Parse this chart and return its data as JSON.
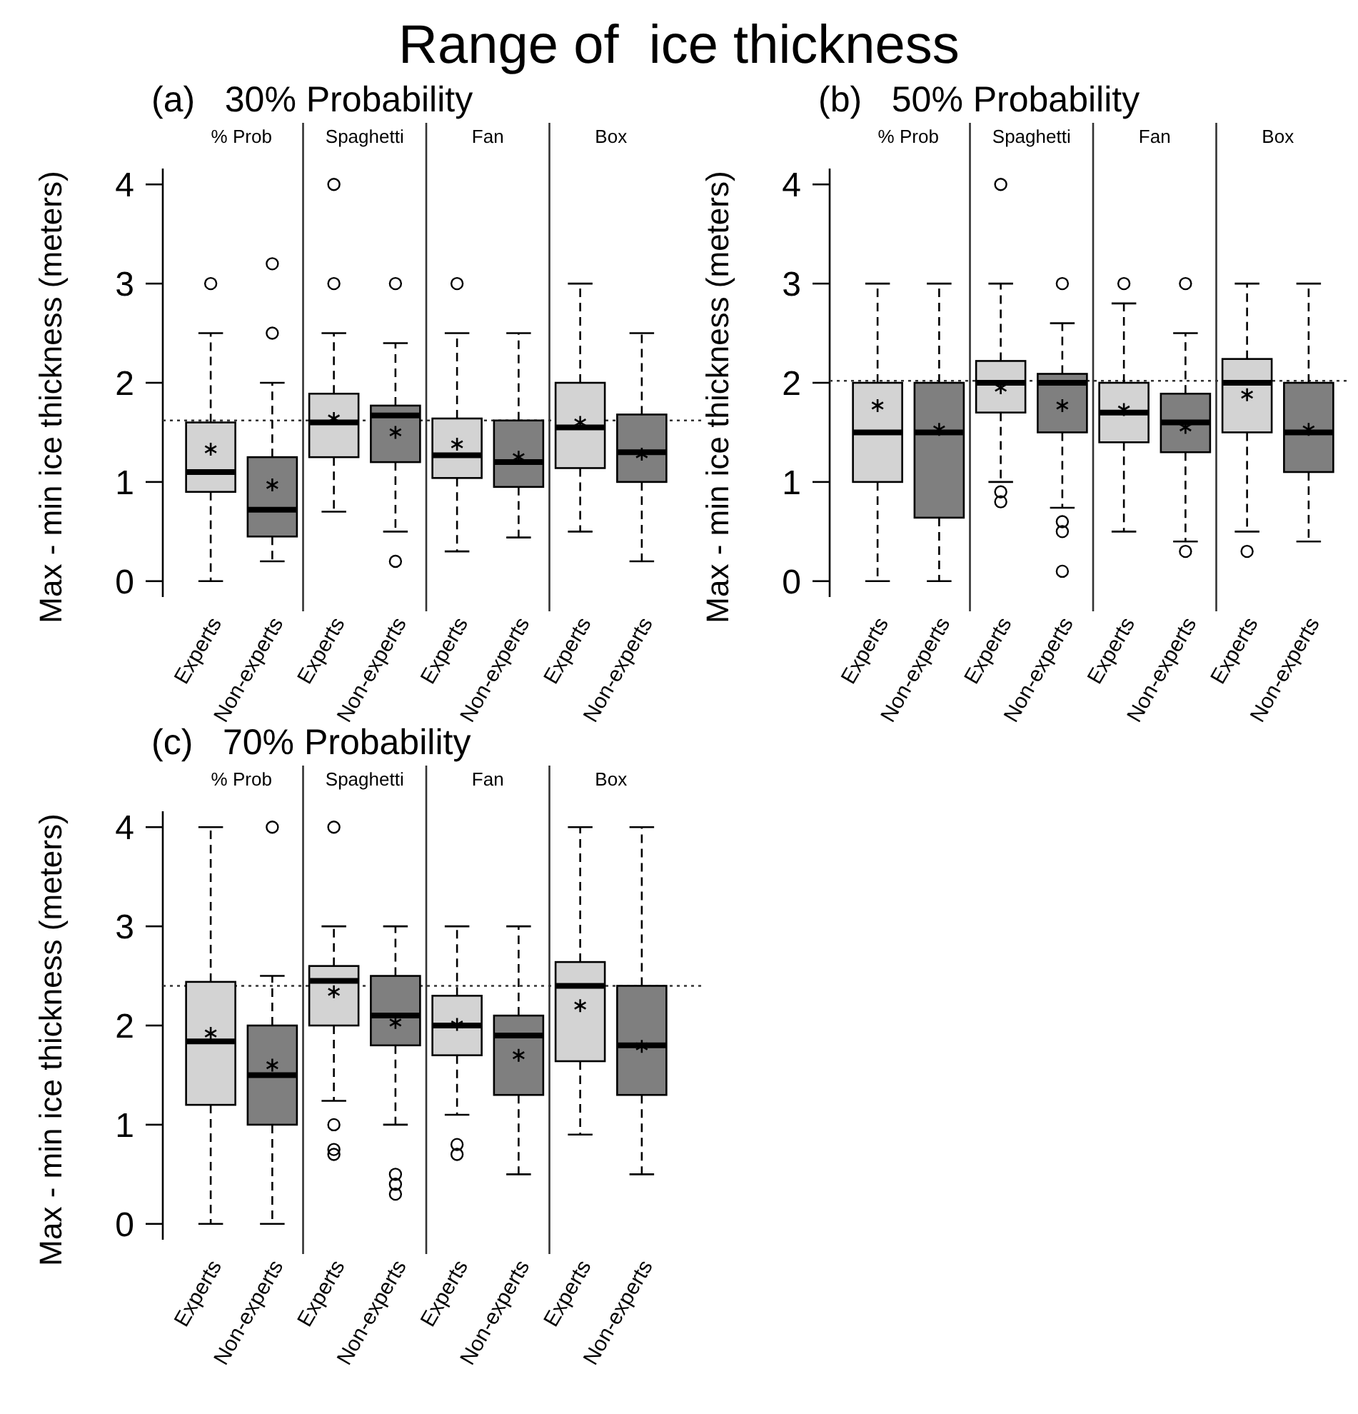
{
  "chart_data": [
    {
      "type": "box",
      "title": "Range of  ice thickness",
      "subtitle": "(a)   30% Probability",
      "ylabel": "Max - min ice thickness (meters)",
      "categories": [
        "Experts",
        "Non-experts",
        "Experts",
        "Non-experts",
        "Experts",
        "Non-experts",
        "Experts",
        "Non-experts"
      ],
      "colors": [
        "#d3d3d3",
        "#7f7f7f",
        "#d3d3d3",
        "#7f7f7f",
        "#d3d3d3",
        "#7f7f7f",
        "#d3d3d3",
        "#7f7f7f"
      ],
      "ylim": [
        -0.16,
        4.16
      ],
      "yticks": [
        0,
        1,
        2,
        3,
        4
      ],
      "annotations": [
        "% Prob",
        "Spaghetti",
        "Fan",
        "Box"
      ],
      "ref_lines": [
        {
          "axis": "y",
          "value": 1.62,
          "line_style": "dotted",
          "color": "#333333"
        }
      ],
      "boxes": [
        {
          "low": 0,
          "q1": 0.9,
          "median": 1.1,
          "q3": 1.6,
          "high": 2.5,
          "mean": 1.33,
          "outliers": [
            3
          ]
        },
        {
          "low": 0.2,
          "q1": 0.45,
          "median": 0.72,
          "q3": 1.25,
          "high": 2,
          "mean": 0.97,
          "outliers": [
            2.5,
            3.2
          ]
        },
        {
          "low": 0.7,
          "q1": 1.25,
          "median": 1.6,
          "q3": 1.89,
          "high": 2.5,
          "mean": 1.64,
          "outliers": [
            3,
            4
          ]
        },
        {
          "low": 0.5,
          "q1": 1.2,
          "median": 1.67,
          "q3": 1.77,
          "high": 2.4,
          "mean": 1.5,
          "outliers": [
            3,
            0.2
          ]
        },
        {
          "low": 0.3,
          "q1": 1.04,
          "median": 1.27,
          "q3": 1.64,
          "high": 2.5,
          "mean": 1.38,
          "outliers": [
            3
          ]
        },
        {
          "low": 0.44,
          "q1": 0.95,
          "median": 1.2,
          "q3": 1.62,
          "high": 2.5,
          "mean": 1.25
        },
        {
          "low": 0.5,
          "q1": 1.14,
          "median": 1.55,
          "q3": 2,
          "high": 3,
          "mean": 1.6
        },
        {
          "low": 0.2,
          "q1": 1,
          "median": 1.3,
          "q3": 1.68,
          "high": 2.5,
          "mean": 1.28
        }
      ]
    },
    {
      "type": "box",
      "subtitle": "(b)   50% Probability",
      "ylabel": "Max - min ice thickness (meters)",
      "categories": [
        "Experts",
        "Non-experts",
        "Experts",
        "Non-experts",
        "Experts",
        "Non-experts",
        "Experts",
        "Non-experts"
      ],
      "colors": [
        "#d3d3d3",
        "#7f7f7f",
        "#d3d3d3",
        "#7f7f7f",
        "#d3d3d3",
        "#7f7f7f",
        "#d3d3d3",
        "#7f7f7f"
      ],
      "ylim": [
        -0.16,
        4.16
      ],
      "yticks": [
        0,
        1,
        2,
        3,
        4
      ],
      "annotations": [
        "% Prob",
        "Spaghetti",
        "Fan",
        "Box"
      ],
      "ref_lines": [
        {
          "axis": "y",
          "value": 2.02,
          "line_style": "dotted",
          "color": "#333333"
        }
      ],
      "boxes": [
        {
          "low": 0,
          "q1": 1,
          "median": 1.5,
          "q3": 2,
          "high": 3,
          "mean": 1.77
        },
        {
          "low": 0,
          "q1": 0.64,
          "median": 1.5,
          "q3": 2,
          "high": 3,
          "mean": 1.53
        },
        {
          "low": 1,
          "q1": 1.7,
          "median": 2,
          "q3": 2.22,
          "high": 3,
          "mean": 1.95,
          "outliers": [
            4,
            0.9,
            0.8
          ]
        },
        {
          "low": 0.74,
          "q1": 1.5,
          "median": 2,
          "q3": 2.09,
          "high": 2.6,
          "mean": 1.77,
          "outliers": [
            3,
            0.6,
            0.5,
            0.1
          ]
        },
        {
          "low": 0.5,
          "q1": 1.4,
          "median": 1.7,
          "q3": 2,
          "high": 2.8,
          "mean": 1.73,
          "outliers": [
            3
          ]
        },
        {
          "low": 0.4,
          "q1": 1.3,
          "median": 1.6,
          "q3": 1.89,
          "high": 2.5,
          "mean": 1.55,
          "outliers": [
            3,
            0.3
          ]
        },
        {
          "low": 0.5,
          "q1": 1.5,
          "median": 2,
          "q3": 2.24,
          "high": 3,
          "mean": 1.88,
          "outliers": [
            0.3
          ]
        },
        {
          "low": 0.4,
          "q1": 1.1,
          "median": 1.5,
          "q3": 2,
          "high": 3,
          "mean": 1.53
        }
      ]
    },
    {
      "type": "box",
      "subtitle": "(c)   70% Probability",
      "ylabel": "Max - min ice thickness (meters)",
      "categories": [
        "Experts",
        "Non-experts",
        "Experts",
        "Non-experts",
        "Experts",
        "Non-experts",
        "Experts",
        "Non-experts"
      ],
      "colors": [
        "#d3d3d3",
        "#7f7f7f",
        "#d3d3d3",
        "#7f7f7f",
        "#d3d3d3",
        "#7f7f7f",
        "#d3d3d3",
        "#7f7f7f"
      ],
      "ylim": [
        -0.16,
        4.16
      ],
      "yticks": [
        0,
        1,
        2,
        3,
        4
      ],
      "annotations": [
        "% Prob",
        "Spaghetti",
        "Fan",
        "Box"
      ],
      "ref_lines": [
        {
          "axis": "y",
          "value": 2.4,
          "line_style": "dotted",
          "color": "#333333"
        }
      ],
      "boxes": [
        {
          "low": 0,
          "q1": 1.2,
          "median": 1.84,
          "q3": 2.44,
          "high": 4,
          "mean": 1.92
        },
        {
          "low": 0,
          "q1": 1,
          "median": 1.5,
          "q3": 2,
          "high": 2.5,
          "mean": 1.6,
          "outliers": [
            4
          ]
        },
        {
          "low": 1.24,
          "q1": 2,
          "median": 2.45,
          "q3": 2.6,
          "high": 3,
          "mean": 2.34,
          "outliers": [
            4,
            1,
            0.75,
            0.7
          ]
        },
        {
          "low": 1,
          "q1": 1.8,
          "median": 2.1,
          "q3": 2.5,
          "high": 3,
          "mean": 2.03,
          "outliers": [
            0.5,
            0.4,
            0.3
          ]
        },
        {
          "low": 1.1,
          "q1": 1.7,
          "median": 2,
          "q3": 2.3,
          "high": 3,
          "mean": 2.01,
          "outliers": [
            0.8,
            0.7
          ]
        },
        {
          "low": 0.5,
          "q1": 1.3,
          "median": 1.9,
          "q3": 2.1,
          "high": 3,
          "mean": 1.7
        },
        {
          "low": 0.9,
          "q1": 1.64,
          "median": 2.4,
          "q3": 2.64,
          "high": 4,
          "mean": 2.2
        },
        {
          "low": 0.5,
          "q1": 1.3,
          "median": 1.8,
          "q3": 2.4,
          "high": 4,
          "mean": 1.79
        }
      ]
    }
  ]
}
